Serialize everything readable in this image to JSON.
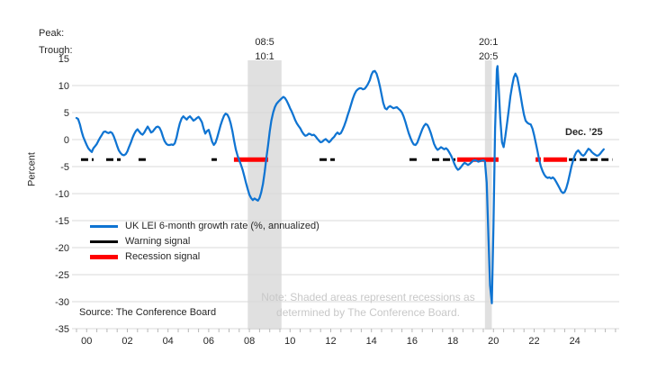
{
  "header": {
    "peak_label": "Peak:",
    "trough_label": "Trough:"
  },
  "axis": {
    "y_title": "Percent"
  },
  "legend": {
    "items": [
      {
        "label": "UK LEI 6-month growth rate (%, annualized)",
        "color": "#0f74d2",
        "thick": false
      },
      {
        "label": "Warning signal",
        "color": "#000000",
        "thick": false
      },
      {
        "label": "Recession signal",
        "color": "#ff0000",
        "thick": true
      }
    ]
  },
  "annotations": {
    "last_point_label": "Dec. ’25",
    "source": "Source: The Conference Board",
    "note_line1": "Note: Shaded areas represent recessions as",
    "note_line2": "determined by The Conference Board."
  },
  "colors": {
    "line": "#0f74d2",
    "warning": "#000000",
    "recession_signal": "#ff0000",
    "band": "#e0e0e0",
    "grid": "#d9d9d9",
    "tick": "#b7b7b7",
    "label": "#262626",
    "note": "#c8c8c8"
  },
  "chart_data": {
    "type": "line",
    "title": "",
    "xlabel": "",
    "ylabel": "Percent",
    "ylim": [
      -35,
      15
    ],
    "x_domain": [
      2000,
      2026.5
    ],
    "grid": true,
    "legend_position": "inside-left",
    "yticks": [
      15,
      10,
      5,
      0,
      -5,
      -10,
      -15,
      -20,
      -25,
      -30,
      -35
    ],
    "xtick_labels": [
      "00",
      "02",
      "04",
      "06",
      "08",
      "10",
      "12",
      "14",
      "16",
      "18",
      "20",
      "22",
      "24"
    ],
    "signal_level": -3.7,
    "recessions": [
      {
        "peak": "08:5",
        "trough": "10:1",
        "start": 2008.42,
        "end": 2010.08
      },
      {
        "peak": "20:1",
        "trough": "20:5",
        "start": 2020.08,
        "end": 2020.42
      }
    ],
    "warning_segments": [
      [
        2000.22,
        2000.84
      ],
      [
        2001.46,
        2002.17
      ],
      [
        2003.05,
        2003.45
      ],
      [
        2006.64,
        2006.9
      ],
      [
        2011.95,
        2012.7
      ],
      [
        2016.37,
        2016.77
      ],
      [
        2017.48,
        2018.63
      ],
      [
        2024.21,
        2026.35
      ]
    ],
    "recession_segments": [
      [
        2007.74,
        2009.42
      ],
      [
        2018.72,
        2020.75
      ],
      [
        2022.57,
        2022.83
      ],
      [
        2022.96,
        2024.12
      ]
    ],
    "series": {
      "name": "UK LEI 6-month growth rate (%, annualized)",
      "points": [
        [
          2000.0,
          4.0
        ],
        [
          2000.08,
          3.8
        ],
        [
          2000.17,
          2.8
        ],
        [
          2000.25,
          1.5
        ],
        [
          2000.33,
          0.5
        ],
        [
          2000.42,
          -0.3
        ],
        [
          2000.5,
          -1.0
        ],
        [
          2000.58,
          -1.6
        ],
        [
          2000.67,
          -2.0
        ],
        [
          2000.75,
          -2.3
        ],
        [
          2000.83,
          -1.6
        ],
        [
          2000.92,
          -1.2
        ],
        [
          2001.0,
          -0.8
        ],
        [
          2001.08,
          -0.2
        ],
        [
          2001.17,
          0.4
        ],
        [
          2001.25,
          0.9
        ],
        [
          2001.33,
          1.4
        ],
        [
          2001.42,
          1.5
        ],
        [
          2001.5,
          1.3
        ],
        [
          2001.58,
          1.2
        ],
        [
          2001.67,
          1.4
        ],
        [
          2001.75,
          1.2
        ],
        [
          2001.83,
          0.6
        ],
        [
          2001.92,
          -0.3
        ],
        [
          2002.0,
          -1.2
        ],
        [
          2002.08,
          -2.0
        ],
        [
          2002.17,
          -2.5
        ],
        [
          2002.25,
          -2.8
        ],
        [
          2002.33,
          -2.9
        ],
        [
          2002.42,
          -2.7
        ],
        [
          2002.5,
          -2.2
        ],
        [
          2002.58,
          -1.4
        ],
        [
          2002.67,
          -0.6
        ],
        [
          2002.75,
          0.3
        ],
        [
          2002.83,
          1.0
        ],
        [
          2002.92,
          1.6
        ],
        [
          2003.0,
          1.9
        ],
        [
          2003.08,
          1.5
        ],
        [
          2003.17,
          1.1
        ],
        [
          2003.25,
          0.9
        ],
        [
          2003.33,
          1.3
        ],
        [
          2003.42,
          1.9
        ],
        [
          2003.5,
          2.4
        ],
        [
          2003.58,
          1.9
        ],
        [
          2003.67,
          1.3
        ],
        [
          2003.75,
          1.5
        ],
        [
          2003.83,
          1.9
        ],
        [
          2003.92,
          2.3
        ],
        [
          2004.0,
          2.4
        ],
        [
          2004.08,
          2.2
        ],
        [
          2004.17,
          1.5
        ],
        [
          2004.25,
          0.5
        ],
        [
          2004.33,
          -0.3
        ],
        [
          2004.42,
          -0.8
        ],
        [
          2004.5,
          -1.0
        ],
        [
          2004.58,
          -1.0
        ],
        [
          2004.67,
          -0.9
        ],
        [
          2004.75,
          -1.0
        ],
        [
          2004.83,
          -0.7
        ],
        [
          2004.92,
          0.4
        ],
        [
          2005.0,
          1.8
        ],
        [
          2005.08,
          3.0
        ],
        [
          2005.17,
          3.9
        ],
        [
          2005.25,
          4.3
        ],
        [
          2005.33,
          4.0
        ],
        [
          2005.42,
          3.7
        ],
        [
          2005.5,
          4.1
        ],
        [
          2005.58,
          4.3
        ],
        [
          2005.67,
          3.9
        ],
        [
          2005.75,
          3.5
        ],
        [
          2005.83,
          3.7
        ],
        [
          2005.92,
          4.0
        ],
        [
          2006.0,
          4.2
        ],
        [
          2006.08,
          3.8
        ],
        [
          2006.17,
          3.2
        ],
        [
          2006.25,
          2.0
        ],
        [
          2006.33,
          1.1
        ],
        [
          2006.42,
          1.6
        ],
        [
          2006.5,
          1.8
        ],
        [
          2006.58,
          0.8
        ],
        [
          2006.67,
          -0.4
        ],
        [
          2006.75,
          -1.0
        ],
        [
          2006.83,
          -0.6
        ],
        [
          2006.92,
          0.4
        ],
        [
          2007.0,
          1.5
        ],
        [
          2007.08,
          2.6
        ],
        [
          2007.17,
          3.6
        ],
        [
          2007.25,
          4.4
        ],
        [
          2007.33,
          4.8
        ],
        [
          2007.42,
          4.6
        ],
        [
          2007.5,
          4.0
        ],
        [
          2007.58,
          3.0
        ],
        [
          2007.67,
          1.5
        ],
        [
          2007.75,
          -0.2
        ],
        [
          2007.83,
          -1.8
        ],
        [
          2007.92,
          -3.0
        ],
        [
          2008.0,
          -3.8
        ],
        [
          2008.08,
          -4.6
        ],
        [
          2008.17,
          -5.6
        ],
        [
          2008.25,
          -6.8
        ],
        [
          2008.33,
          -8.0
        ],
        [
          2008.42,
          -9.2
        ],
        [
          2008.5,
          -10.2
        ],
        [
          2008.58,
          -10.8
        ],
        [
          2008.67,
          -11.2
        ],
        [
          2008.75,
          -10.9
        ],
        [
          2008.83,
          -11.1
        ],
        [
          2008.92,
          -11.3
        ],
        [
          2009.0,
          -10.8
        ],
        [
          2009.08,
          -9.8
        ],
        [
          2009.17,
          -8.2
        ],
        [
          2009.25,
          -6.0
        ],
        [
          2009.33,
          -3.5
        ],
        [
          2009.42,
          -1.0
        ],
        [
          2009.5,
          1.5
        ],
        [
          2009.58,
          3.5
        ],
        [
          2009.67,
          5.0
        ],
        [
          2009.75,
          6.0
        ],
        [
          2009.83,
          6.6
        ],
        [
          2009.92,
          7.0
        ],
        [
          2010.0,
          7.3
        ],
        [
          2010.08,
          7.6
        ],
        [
          2010.17,
          7.9
        ],
        [
          2010.25,
          7.7
        ],
        [
          2010.33,
          7.2
        ],
        [
          2010.42,
          6.5
        ],
        [
          2010.5,
          5.8
        ],
        [
          2010.58,
          5.2
        ],
        [
          2010.67,
          4.4
        ],
        [
          2010.75,
          3.6
        ],
        [
          2010.83,
          3.0
        ],
        [
          2010.92,
          2.5
        ],
        [
          2011.0,
          2.1
        ],
        [
          2011.08,
          1.5
        ],
        [
          2011.17,
          1.0
        ],
        [
          2011.25,
          0.7
        ],
        [
          2011.33,
          0.8
        ],
        [
          2011.42,
          1.1
        ],
        [
          2011.5,
          1.0
        ],
        [
          2011.58,
          0.8
        ],
        [
          2011.67,
          0.9
        ],
        [
          2011.75,
          0.6
        ],
        [
          2011.83,
          0.2
        ],
        [
          2011.92,
          -0.2
        ],
        [
          2012.0,
          -0.5
        ],
        [
          2012.08,
          -0.4
        ],
        [
          2012.17,
          -0.1
        ],
        [
          2012.25,
          0.1
        ],
        [
          2012.33,
          -0.2
        ],
        [
          2012.42,
          -0.5
        ],
        [
          2012.5,
          -0.2
        ],
        [
          2012.58,
          0.2
        ],
        [
          2012.67,
          0.5
        ],
        [
          2012.75,
          1.0
        ],
        [
          2012.83,
          1.3
        ],
        [
          2012.92,
          1.0
        ],
        [
          2013.0,
          1.2
        ],
        [
          2013.08,
          1.8
        ],
        [
          2013.17,
          2.6
        ],
        [
          2013.25,
          3.5
        ],
        [
          2013.33,
          4.5
        ],
        [
          2013.42,
          5.5
        ],
        [
          2013.5,
          6.5
        ],
        [
          2013.58,
          7.5
        ],
        [
          2013.67,
          8.4
        ],
        [
          2013.75,
          9.0
        ],
        [
          2013.83,
          9.3
        ],
        [
          2013.92,
          9.5
        ],
        [
          2014.0,
          9.5
        ],
        [
          2014.08,
          9.3
        ],
        [
          2014.17,
          9.4
        ],
        [
          2014.25,
          9.8
        ],
        [
          2014.33,
          10.3
        ],
        [
          2014.42,
          11.0
        ],
        [
          2014.5,
          12.0
        ],
        [
          2014.58,
          12.6
        ],
        [
          2014.67,
          12.7
        ],
        [
          2014.75,
          12.2
        ],
        [
          2014.83,
          11.2
        ],
        [
          2014.92,
          9.8
        ],
        [
          2015.0,
          8.3
        ],
        [
          2015.08,
          6.8
        ],
        [
          2015.17,
          5.8
        ],
        [
          2015.25,
          5.6
        ],
        [
          2015.33,
          6.0
        ],
        [
          2015.42,
          6.2
        ],
        [
          2015.5,
          6.0
        ],
        [
          2015.58,
          5.8
        ],
        [
          2015.67,
          5.9
        ],
        [
          2015.75,
          6.0
        ],
        [
          2015.83,
          5.7
        ],
        [
          2015.92,
          5.4
        ],
        [
          2016.0,
          5.0
        ],
        [
          2016.08,
          4.3
        ],
        [
          2016.17,
          3.3
        ],
        [
          2016.25,
          2.2
        ],
        [
          2016.33,
          1.2
        ],
        [
          2016.42,
          0.3
        ],
        [
          2016.5,
          -0.4
        ],
        [
          2016.58,
          -0.9
        ],
        [
          2016.67,
          -1.0
        ],
        [
          2016.75,
          -0.6
        ],
        [
          2016.83,
          0.2
        ],
        [
          2016.92,
          1.1
        ],
        [
          2017.0,
          1.9
        ],
        [
          2017.08,
          2.5
        ],
        [
          2017.17,
          2.9
        ],
        [
          2017.25,
          2.7
        ],
        [
          2017.33,
          2.1
        ],
        [
          2017.42,
          1.2
        ],
        [
          2017.5,
          0.2
        ],
        [
          2017.58,
          -0.8
        ],
        [
          2017.67,
          -1.5
        ],
        [
          2017.75,
          -1.9
        ],
        [
          2017.83,
          -1.7
        ],
        [
          2017.92,
          -1.4
        ],
        [
          2018.0,
          -1.6
        ],
        [
          2018.08,
          -1.8
        ],
        [
          2018.17,
          -1.6
        ],
        [
          2018.25,
          -1.9
        ],
        [
          2018.33,
          -2.4
        ],
        [
          2018.42,
          -3.0
        ],
        [
          2018.5,
          -3.7
        ],
        [
          2018.58,
          -4.5
        ],
        [
          2018.67,
          -5.2
        ],
        [
          2018.75,
          -5.6
        ],
        [
          2018.83,
          -5.4
        ],
        [
          2018.92,
          -5.0
        ],
        [
          2019.0,
          -4.6
        ],
        [
          2019.08,
          -4.3
        ],
        [
          2019.17,
          -4.5
        ],
        [
          2019.25,
          -4.7
        ],
        [
          2019.33,
          -4.5
        ],
        [
          2019.42,
          -4.2
        ],
        [
          2019.5,
          -3.9
        ],
        [
          2019.58,
          -3.8
        ],
        [
          2019.67,
          -3.9
        ],
        [
          2019.75,
          -4.1
        ],
        [
          2019.83,
          -4.0
        ],
        [
          2019.92,
          -3.9
        ],
        [
          2020.0,
          -3.8
        ],
        [
          2020.08,
          -4.0
        ],
        [
          2020.17,
          -8.0
        ],
        [
          2020.25,
          -18.0
        ],
        [
          2020.33,
          -27.0
        ],
        [
          2020.42,
          -30.3
        ],
        [
          2020.5,
          -16.0
        ],
        [
          2020.58,
          2.0
        ],
        [
          2020.67,
          13.0
        ],
        [
          2020.7,
          13.6
        ],
        [
          2020.75,
          10.0
        ],
        [
          2020.83,
          4.0
        ],
        [
          2020.92,
          -0.5
        ],
        [
          2021.0,
          -1.4
        ],
        [
          2021.08,
          0.5
        ],
        [
          2021.17,
          3.0
        ],
        [
          2021.25,
          5.5
        ],
        [
          2021.33,
          8.0
        ],
        [
          2021.42,
          10.0
        ],
        [
          2021.5,
          11.5
        ],
        [
          2021.58,
          12.2
        ],
        [
          2021.67,
          11.5
        ],
        [
          2021.75,
          10.0
        ],
        [
          2021.83,
          8.2
        ],
        [
          2021.92,
          6.2
        ],
        [
          2022.0,
          4.6
        ],
        [
          2022.08,
          3.5
        ],
        [
          2022.17,
          3.1
        ],
        [
          2022.25,
          2.9
        ],
        [
          2022.33,
          2.8
        ],
        [
          2022.42,
          2.0
        ],
        [
          2022.5,
          0.8
        ],
        [
          2022.58,
          -0.6
        ],
        [
          2022.67,
          -2.2
        ],
        [
          2022.75,
          -3.8
        ],
        [
          2022.83,
          -5.0
        ],
        [
          2022.92,
          -5.9
        ],
        [
          2023.0,
          -6.5
        ],
        [
          2023.08,
          -6.9
        ],
        [
          2023.17,
          -7.1
        ],
        [
          2023.25,
          -7.0
        ],
        [
          2023.33,
          -7.2
        ],
        [
          2023.42,
          -7.0
        ],
        [
          2023.5,
          -7.3
        ],
        [
          2023.58,
          -7.8
        ],
        [
          2023.67,
          -8.4
        ],
        [
          2023.75,
          -9.0
        ],
        [
          2023.83,
          -9.6
        ],
        [
          2023.92,
          -9.9
        ],
        [
          2024.0,
          -9.7
        ],
        [
          2024.08,
          -9.0
        ],
        [
          2024.17,
          -7.8
        ],
        [
          2024.25,
          -6.4
        ],
        [
          2024.33,
          -5.0
        ],
        [
          2024.42,
          -3.8
        ],
        [
          2024.5,
          -2.9
        ],
        [
          2024.58,
          -2.3
        ],
        [
          2024.67,
          -2.0
        ],
        [
          2024.75,
          -2.4
        ],
        [
          2024.83,
          -2.8
        ],
        [
          2024.92,
          -3.0
        ],
        [
          2025.0,
          -2.7
        ],
        [
          2025.08,
          -2.2
        ],
        [
          2025.17,
          -1.7
        ],
        [
          2025.25,
          -1.9
        ],
        [
          2025.33,
          -2.3
        ],
        [
          2025.42,
          -2.6
        ],
        [
          2025.5,
          -2.8
        ],
        [
          2025.58,
          -3.0
        ],
        [
          2025.67,
          -2.9
        ],
        [
          2025.75,
          -2.6
        ],
        [
          2025.83,
          -2.2
        ],
        [
          2025.92,
          -1.8
        ]
      ]
    }
  }
}
